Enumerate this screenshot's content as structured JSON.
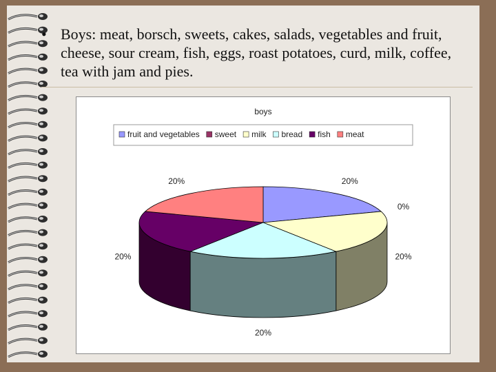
{
  "slide": {
    "bullet": "•",
    "text": "Boys: meat, borsch, sweets, cakes, salads, vegetables and fruit, cheese, sour cream, fish, eggs, roast potatoes, curd, milk, coffee, tea with jam and pies."
  },
  "chart_data": {
    "type": "pie",
    "title": "boys",
    "legend_position": "top",
    "categories": [
      "fruit and vegetables",
      "sweet",
      "milk",
      "bread",
      "fish",
      "meat"
    ],
    "values": [
      20,
      0,
      20,
      20,
      20,
      20
    ],
    "labels": [
      "20%",
      "0%",
      "20%",
      "20%",
      "20%",
      "20%"
    ],
    "colors": [
      "#9999ff",
      "#993366",
      "#ffffcc",
      "#ccffff",
      "#660066",
      "#ff8080"
    ],
    "side_colors": [
      "#5c5c99",
      "#5c1f3d",
      "#808066",
      "#658080",
      "#33002f",
      "#994d4d"
    ]
  }
}
